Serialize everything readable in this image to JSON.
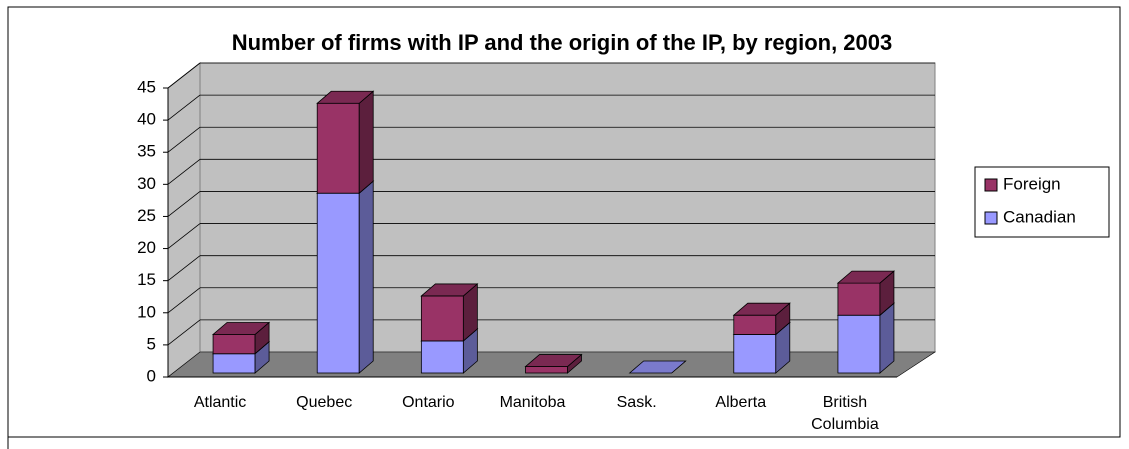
{
  "chart_data": {
    "type": "bar3d_stacked",
    "title": "Number of firms with IP and the origin of the IP, by region, 2003",
    "categories": [
      "Atlantic",
      "Quebec",
      "Ontario",
      "Manitoba",
      "Sask.",
      "Alberta",
      "British Columbia"
    ],
    "series": [
      {
        "name": "Canadian",
        "color": "#9999ff",
        "values": [
          3,
          28,
          5,
          0,
          0,
          6,
          9
        ]
      },
      {
        "name": "Foreign",
        "color": "#993366",
        "values": [
          3,
          14,
          7,
          1,
          0,
          3,
          5
        ]
      }
    ],
    "ylim": [
      0,
      45
    ],
    "yticks": [
      0,
      5,
      10,
      15,
      20,
      25,
      30,
      35,
      40,
      45
    ],
    "grid": true,
    "legend": "right"
  }
}
